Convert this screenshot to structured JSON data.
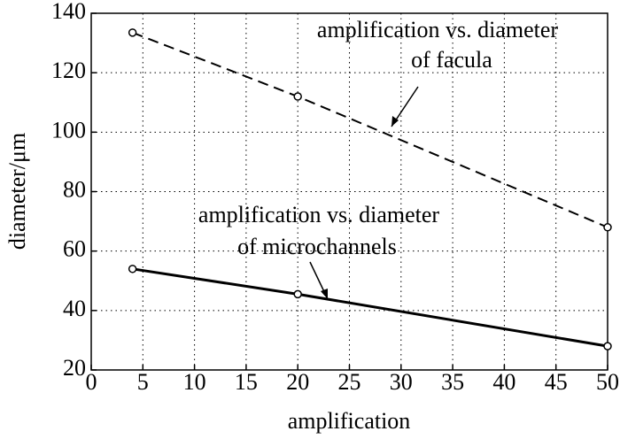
{
  "chart_data": {
    "type": "line",
    "x_label": "amplification",
    "y_label": "diameter/μm",
    "xlim": [
      0,
      50
    ],
    "xticks": [
      0,
      5,
      10,
      15,
      20,
      25,
      30,
      35,
      40,
      45,
      50
    ],
    "ylim": [
      20,
      140
    ],
    "yticks": [
      20,
      40,
      60,
      80,
      100,
      120,
      140
    ],
    "grid": true,
    "series": [
      {
        "x": [
          4,
          20,
          50
        ],
        "values": [
          133.5,
          112,
          68
        ],
        "color": "#000000",
        "line_style": "dashed"
      },
      {
        "x": [
          4,
          20,
          50
        ],
        "values": [
          54,
          45.5,
          28
        ],
        "color": "#000000",
        "line_style": "solid"
      }
    ],
    "annotations": [
      {
        "lines": [
          "amplification vs. diameter",
          "of facula"
        ]
      },
      {
        "lines": [
          "amplification vs. diameter",
          "of microchannels"
        ]
      }
    ]
  }
}
